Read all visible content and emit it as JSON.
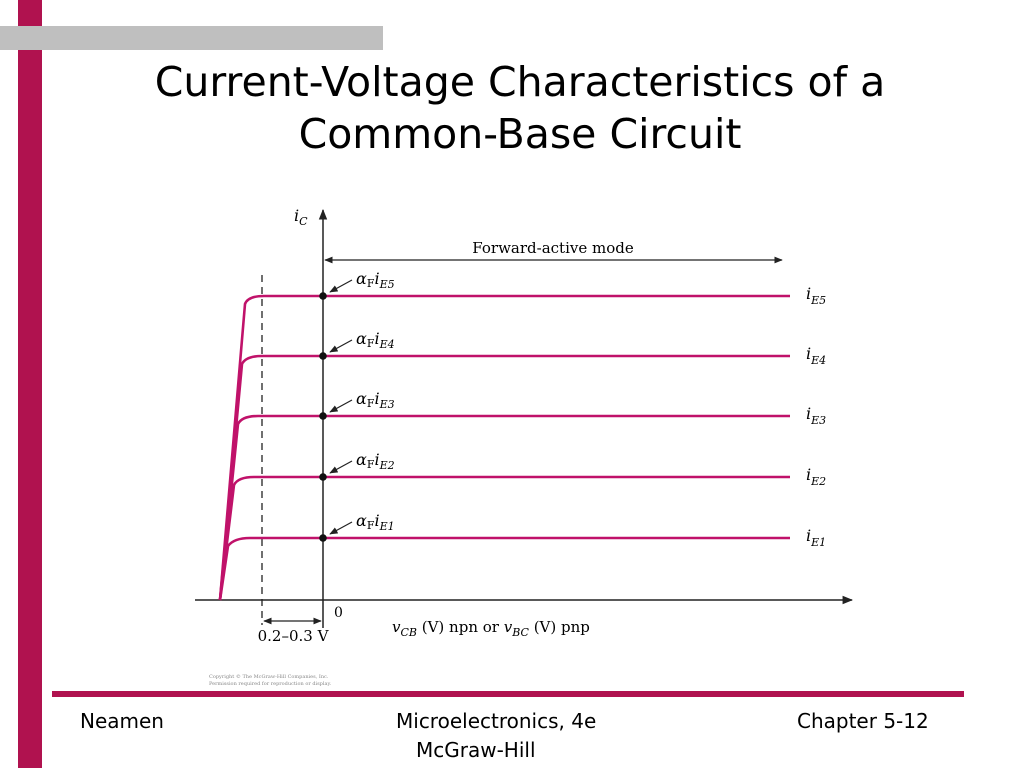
{
  "slide": {
    "title_line1": "Current-Voltage Characteristics of a",
    "title_line2": "Common-Base Circuit"
  },
  "figure": {
    "y_axis_label": "i",
    "y_axis_sub": "C",
    "origin_label": "0",
    "mode_label": "Forward-active mode",
    "x_axis_label": {
      "v1": "v",
      "sub1": "CB",
      "mid": " (V) npn or ",
      "v2": "v",
      "sub2": "BC",
      "end": " (V) pnp"
    },
    "offset_label": "0.2–0.3 V",
    "copyright_line1": "Copyright © The McGraw-Hill Companies, Inc.",
    "copyright_line2": "Permission required for reproduction or display.",
    "curves": [
      {
        "alpha": "α",
        "alpha_sub": "F",
        "i": "i",
        "i_sub": "E5",
        "right_i": "i",
        "right_sub": "E5"
      },
      {
        "alpha": "α",
        "alpha_sub": "F",
        "i": "i",
        "i_sub": "E4",
        "right_i": "i",
        "right_sub": "E4"
      },
      {
        "alpha": "α",
        "alpha_sub": "F",
        "i": "i",
        "i_sub": "E3",
        "right_i": "i",
        "right_sub": "E3"
      },
      {
        "alpha": "α",
        "alpha_sub": "F",
        "i": "i",
        "i_sub": "E2",
        "right_i": "i",
        "right_sub": "E2"
      },
      {
        "alpha": "α",
        "alpha_sub": "F",
        "i": "i",
        "i_sub": "E1",
        "right_i": "i",
        "right_sub": "E1"
      }
    ],
    "colors": {
      "curve": "#c0126a",
      "axis": "#222222"
    }
  },
  "footer": {
    "author": "Neamen",
    "book": "Microelectronics, 4e",
    "publisher": "McGraw-Hill",
    "chapter": "Chapter 5-12"
  },
  "colors": {
    "accent": "#b0124f",
    "gray_bar": "#bfbfbf"
  }
}
